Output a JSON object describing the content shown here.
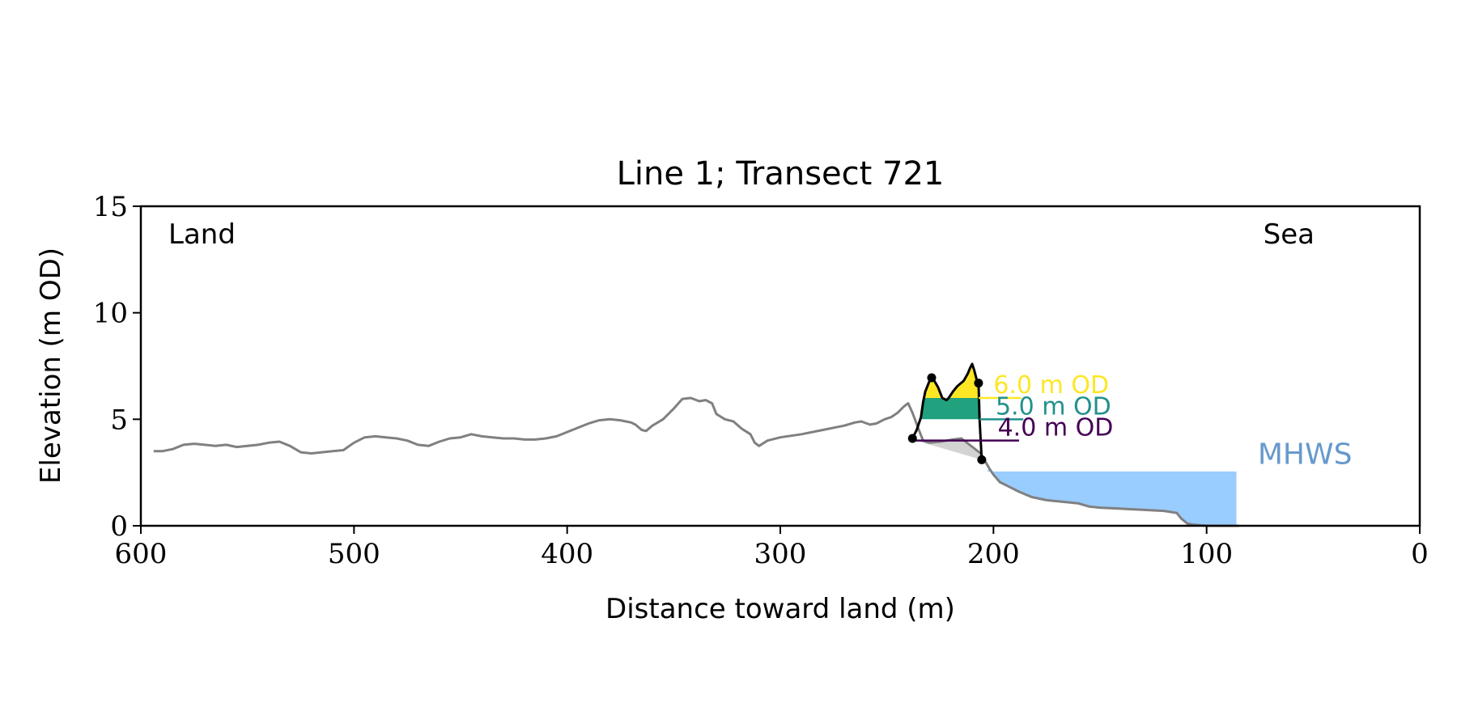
{
  "chart_data": {
    "type": "area",
    "title": "Line 1; Transect 721",
    "xlabel": "Distance toward land (m)",
    "ylabel": "Elevation (m OD)",
    "xlim": [
      600,
      0
    ],
    "ylim": [
      0,
      15
    ],
    "x_ticks": [
      600,
      500,
      400,
      300,
      200,
      100,
      0
    ],
    "y_ticks": [
      0,
      5,
      10,
      15
    ],
    "grid": false,
    "corner_labels": {
      "left": "Land",
      "right": "Sea"
    },
    "colors": {
      "profile": "#808080",
      "dune_outline": "#000000",
      "band_6": "#fde725",
      "band_5": "#21a17e",
      "band_4": "#472c7a",
      "line_6": "#fde725",
      "line_5": "#21918c",
      "line_4": "#440154",
      "below_dune": "#d3d3d3",
      "mhws_fill": "#99ccff",
      "mhws_text": "#6699cc"
    },
    "profile": [
      [
        594,
        3.5
      ],
      [
        590,
        3.5
      ],
      [
        585,
        3.6
      ],
      [
        580,
        3.8
      ],
      [
        575,
        3.85
      ],
      [
        570,
        3.8
      ],
      [
        565,
        3.75
      ],
      [
        560,
        3.8
      ],
      [
        555,
        3.7
      ],
      [
        550,
        3.75
      ],
      [
        545,
        3.8
      ],
      [
        540,
        3.9
      ],
      [
        535,
        3.95
      ],
      [
        530,
        3.75
      ],
      [
        525,
        3.45
      ],
      [
        520,
        3.4
      ],
      [
        515,
        3.45
      ],
      [
        510,
        3.5
      ],
      [
        505,
        3.55
      ],
      [
        500,
        3.9
      ],
      [
        495,
        4.15
      ],
      [
        490,
        4.2
      ],
      [
        485,
        4.15
      ],
      [
        480,
        4.1
      ],
      [
        475,
        4.0
      ],
      [
        470,
        3.8
      ],
      [
        465,
        3.75
      ],
      [
        460,
        3.95
      ],
      [
        455,
        4.1
      ],
      [
        450,
        4.15
      ],
      [
        445,
        4.3
      ],
      [
        440,
        4.2
      ],
      [
        435,
        4.15
      ],
      [
        430,
        4.1
      ],
      [
        425,
        4.1
      ],
      [
        420,
        4.05
      ],
      [
        415,
        4.05
      ],
      [
        410,
        4.1
      ],
      [
        405,
        4.2
      ],
      [
        400,
        4.4
      ],
      [
        395,
        4.6
      ],
      [
        390,
        4.8
      ],
      [
        385,
        4.95
      ],
      [
        380,
        5.0
      ],
      [
        375,
        4.95
      ],
      [
        370,
        4.85
      ],
      [
        368,
        4.75
      ],
      [
        365,
        4.5
      ],
      [
        363,
        4.45
      ],
      [
        360,
        4.7
      ],
      [
        355,
        5.0
      ],
      [
        350,
        5.5
      ],
      [
        346,
        5.95
      ],
      [
        342,
        6.0
      ],
      [
        338,
        5.85
      ],
      [
        335,
        5.9
      ],
      [
        332,
        5.75
      ],
      [
        330,
        5.25
      ],
      [
        326,
        5.0
      ],
      [
        322,
        4.9
      ],
      [
        318,
        4.55
      ],
      [
        314,
        4.3
      ],
      [
        312,
        3.9
      ],
      [
        310,
        3.75
      ],
      [
        306,
        4.0
      ],
      [
        300,
        4.15
      ],
      [
        290,
        4.3
      ],
      [
        280,
        4.5
      ],
      [
        270,
        4.7
      ],
      [
        265,
        4.85
      ],
      [
        262,
        4.9
      ],
      [
        258,
        4.75
      ],
      [
        255,
        4.8
      ],
      [
        251,
        5.0
      ],
      [
        248,
        5.1
      ],
      [
        245,
        5.3
      ],
      [
        242,
        5.6
      ],
      [
        240,
        5.75
      ],
      [
        238,
        5.3
      ],
      [
        235,
        4.5
      ],
      [
        233,
        4.0
      ],
      [
        230,
        3.9
      ],
      [
        225,
        3.95
      ],
      [
        219,
        4.05
      ],
      [
        215,
        4.1
      ],
      [
        206,
        3.4
      ],
      [
        202,
        2.7
      ],
      [
        200,
        2.4
      ],
      [
        197,
        2.05
      ],
      [
        193,
        1.85
      ],
      [
        188,
        1.6
      ],
      [
        182,
        1.35
      ],
      [
        175,
        1.2
      ],
      [
        165,
        1.1
      ],
      [
        160,
        1.05
      ],
      [
        155,
        0.9
      ],
      [
        150,
        0.85
      ],
      [
        140,
        0.8
      ],
      [
        130,
        0.75
      ],
      [
        120,
        0.7
      ],
      [
        114,
        0.6
      ],
      [
        112,
        0.35
      ],
      [
        109,
        0.1
      ],
      [
        106,
        0.05
      ],
      [
        100,
        0.0
      ],
      [
        95,
        0.0
      ],
      [
        90,
        0.0
      ],
      [
        85,
        0.0
      ]
    ],
    "dune_top": [
      [
        238,
        4.1
      ],
      [
        236,
        4.5
      ],
      [
        234,
        5.1
      ],
      [
        233,
        5.8
      ],
      [
        232,
        6.3
      ],
      [
        230,
        6.8
      ],
      [
        229,
        6.95
      ],
      [
        228,
        6.85
      ],
      [
        226,
        6.5
      ],
      [
        224,
        6.0
      ],
      [
        222,
        5.9
      ],
      [
        221,
        6.0
      ],
      [
        219,
        6.3
      ],
      [
        217,
        6.55
      ],
      [
        214,
        6.8
      ],
      [
        212,
        7.15
      ],
      [
        211,
        7.4
      ],
      [
        210,
        7.6
      ],
      [
        209,
        7.3
      ],
      [
        208,
        6.9
      ],
      [
        207,
        6.7
      ]
    ],
    "dune_back": [
      [
        207,
        6.7
      ],
      [
        206.5,
        5.0
      ],
      [
        205.5,
        3.1
      ]
    ],
    "dune_points": [
      [
        238,
        4.1
      ],
      [
        229,
        6.95
      ],
      [
        207,
        6.7
      ],
      [
        205.5,
        3.1
      ]
    ],
    "levels": [
      {
        "value": 6.0,
        "label": "6.0 m OD",
        "line_x": [
          207,
          187
        ],
        "text_x": 200
      },
      {
        "value": 5.0,
        "label": "5.0 m OD",
        "line_x": [
          206.5,
          186
        ],
        "text_x": 199
      },
      {
        "value": 4.0,
        "label": "4.0 m OD",
        "line_x": [
          238,
          188
        ],
        "text_x": 198
      }
    ],
    "mhws": {
      "label": "MHWS",
      "value": 2.55,
      "x_range": [
        203,
        86
      ],
      "label_x": 76,
      "label_y": 3.4
    }
  }
}
